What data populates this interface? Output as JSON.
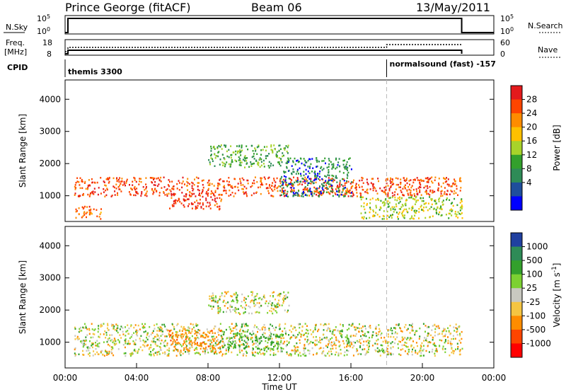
{
  "header": {
    "station": "Prince George (fitACF)",
    "beam": "Beam 06",
    "date": "13/May/2011"
  },
  "top_panels": {
    "nsky_label": "N.Sky",
    "nsky_ticks": [
      "10^5",
      "10^0"
    ],
    "nsearch_label": "N.Search",
    "nsearch_ticks": [
      "10^5",
      "10^0"
    ],
    "freq_label_1": "Freq.",
    "freq_label_2": "[MHz]",
    "freq_ticks": [
      "18",
      "8"
    ],
    "nave_label": "Nave",
    "nave_ticks": [
      "60",
      "0"
    ],
    "cpid_label": "CPID",
    "cpid_segments": [
      {
        "text": "themis 3300",
        "start_hour": 0
      },
      {
        "text": "normalsound (fast) -157",
        "start_hour": 18
      }
    ]
  },
  "chart_data": [
    {
      "type": "heatmap",
      "ylabel": "Slant Range [km]",
      "xlabel": "",
      "xlim": [
        0,
        24
      ],
      "ylim": [
        200,
        4600
      ],
      "ytick_values": [
        1000,
        2000,
        3000,
        4000
      ],
      "colorbar_label": "Power [dB]",
      "colorbar_ticks": [
        "28",
        "24",
        "20",
        "16",
        "12",
        "8",
        "4"
      ],
      "colorbar_colors": [
        "#e41a1c",
        "#ff4500",
        "#ff8c00",
        "#ffc000",
        "#a8d32a",
        "#33a02c",
        "#2e8b57",
        "#1f4e9c",
        "#0000ff"
      ],
      "mode_change_hour": 18,
      "radar_end_hour": 22.2,
      "bands": [
        {
          "t0": 0.5,
          "t1": 22.2,
          "r0": 1000,
          "r1": 1600,
          "value": 26
        },
        {
          "t0": 5.8,
          "t1": 8.8,
          "r0": 600,
          "r1": 1100,
          "value": 28
        },
        {
          "t0": 8.0,
          "t1": 12.5,
          "r0": 1900,
          "r1": 2600,
          "value": 10
        },
        {
          "t0": 12.0,
          "t1": 16.0,
          "r0": 1000,
          "r1": 2200,
          "value": 6
        },
        {
          "t0": 0.5,
          "t1": 2.0,
          "r0": 300,
          "r1": 700,
          "value": 24
        },
        {
          "t0": 16.5,
          "t1": 22.2,
          "r0": 300,
          "r1": 1000,
          "value": 14
        }
      ]
    },
    {
      "type": "heatmap",
      "ylabel": "Slant Range [km]",
      "xlabel": "Time UT",
      "xlim": [
        0,
        24
      ],
      "ylim": [
        200,
        4600
      ],
      "ytick_values": [
        1000,
        2000,
        3000,
        4000
      ],
      "xticks": [
        "00:00",
        "04:00",
        "08:00",
        "12:00",
        "16:00",
        "20:00",
        "00:00"
      ],
      "colorbar_label": "Velocity [m s^-1]",
      "colorbar_ticks": [
        "1000",
        "500",
        "100",
        "25",
        "-25",
        "-100",
        "-500",
        "-1000"
      ],
      "colorbar_colors": [
        "#2040a0",
        "#2e8b57",
        "#33a02c",
        "#7cd132",
        "#c8c8c0",
        "#f5c542",
        "#ff8c00",
        "#ff4500",
        "#ff0000"
      ],
      "mode_change_hour": 18,
      "radar_end_hour": 22.2,
      "bands": [
        {
          "t0": 0.5,
          "t1": 22.2,
          "r0": 600,
          "r1": 1600,
          "value": 0
        },
        {
          "t0": 5.8,
          "t1": 8.8,
          "r0": 700,
          "r1": 1400,
          "value": -400
        },
        {
          "t0": 8.6,
          "t1": 12.2,
          "r0": 800,
          "r1": 1300,
          "value": 150
        },
        {
          "t0": 8.0,
          "t1": 12.5,
          "r0": 1900,
          "r1": 2600,
          "value": 0
        }
      ]
    }
  ]
}
